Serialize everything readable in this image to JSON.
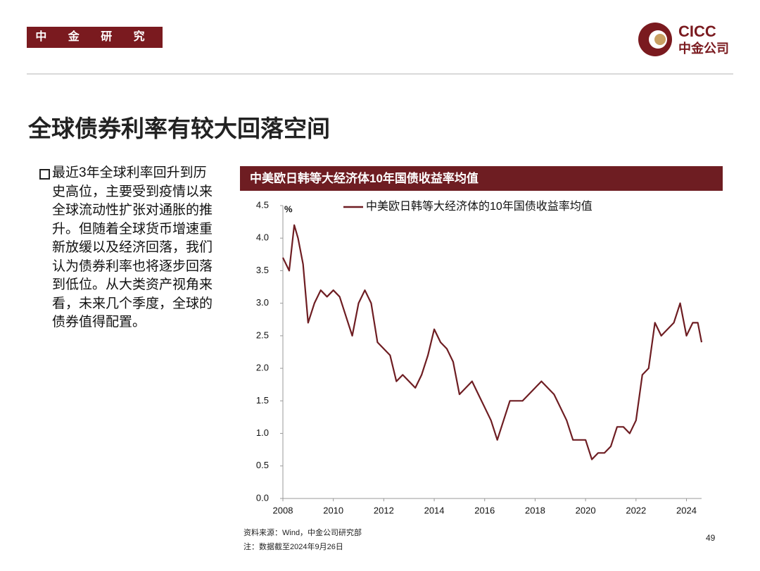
{
  "header": {
    "department": "中 金 研 究 部",
    "logo_en": "CICC",
    "logo_cn": "中金公司"
  },
  "title": "全球债券利率有较大回落空间",
  "bullet": "最近3年全球利率回升到历史高位，主要受到疫情以来全球流动性扩张对通胀的推升。但随着全球货币增速重新放缓以及经济回落，我们认为债券利率也将逐步回落到低位。从大类资产视角来看，未来几个季度，全球的债券值得配置。",
  "chart_data": {
    "type": "line",
    "title": "中美欧日韩等大经济体10年国债收益率均值",
    "ylabel": "%",
    "x": [
      2008.0,
      2008.25,
      2008.45,
      2008.6,
      2008.8,
      2009.0,
      2009.25,
      2009.5,
      2009.75,
      2010.0,
      2010.25,
      2010.5,
      2010.75,
      2011.0,
      2011.25,
      2011.5,
      2011.75,
      2012.0,
      2012.25,
      2012.5,
      2012.75,
      2013.0,
      2013.25,
      2013.5,
      2013.75,
      2014.0,
      2014.25,
      2014.5,
      2014.75,
      2015.0,
      2015.25,
      2015.5,
      2015.75,
      2016.0,
      2016.25,
      2016.5,
      2016.75,
      2017.0,
      2017.25,
      2017.5,
      2017.75,
      2018.0,
      2018.25,
      2018.5,
      2018.75,
      2019.0,
      2019.25,
      2019.5,
      2019.75,
      2020.0,
      2020.25,
      2020.5,
      2020.75,
      2021.0,
      2021.25,
      2021.5,
      2021.75,
      2022.0,
      2022.25,
      2022.5,
      2022.75,
      2023.0,
      2023.25,
      2023.5,
      2023.75,
      2024.0,
      2024.25,
      2024.45,
      2024.6
    ],
    "series": [
      {
        "name": "中美欧日韩等大经济体的10年国债收益率均值",
        "color": "#6e1d22",
        "values": [
          3.7,
          3.5,
          4.2,
          4.0,
          3.6,
          2.7,
          3.0,
          3.2,
          3.1,
          3.2,
          3.1,
          2.8,
          2.5,
          3.0,
          3.2,
          3.0,
          2.4,
          2.3,
          2.2,
          1.8,
          1.9,
          1.8,
          1.7,
          1.9,
          2.2,
          2.6,
          2.4,
          2.3,
          2.1,
          1.6,
          1.7,
          1.8,
          1.6,
          1.4,
          1.2,
          0.9,
          1.2,
          1.5,
          1.5,
          1.5,
          1.6,
          1.7,
          1.8,
          1.7,
          1.6,
          1.4,
          1.2,
          0.9,
          0.9,
          0.9,
          0.6,
          0.7,
          0.7,
          0.8,
          1.1,
          1.1,
          1.0,
          1.2,
          1.9,
          2.0,
          2.7,
          2.5,
          2.6,
          2.7,
          3.0,
          2.5,
          2.7,
          2.7,
          2.4
        ]
      }
    ],
    "xlim": [
      2008,
      2024.6
    ],
    "xticks": [
      2008,
      2010,
      2012,
      2014,
      2016,
      2018,
      2020,
      2022,
      2024
    ],
    "ylim": [
      0,
      4.5
    ],
    "yticks": [
      {
        "value": 0,
        "label": "0.0"
      },
      0.5,
      {
        "value": 1,
        "label": "1.0"
      },
      1.5,
      {
        "value": 2,
        "label": "2.0"
      },
      2.5,
      {
        "value": 3,
        "label": "3.0"
      },
      3.5,
      {
        "value": 4,
        "label": "4.0"
      },
      4.5
    ],
    "grid": false,
    "legend": "top"
  },
  "source": "资料来源：Wind，中金公司研究部",
  "note": "注：数据截至2024年9月26日",
  "page": "49"
}
